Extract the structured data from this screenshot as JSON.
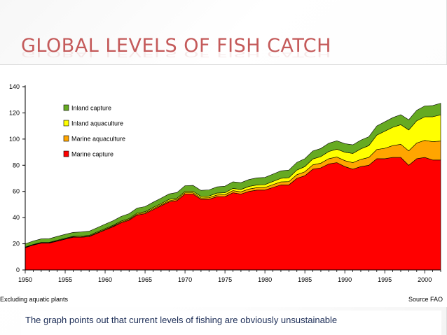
{
  "slide": {
    "title": "GLOBAL LEVELS OF FISH CATCH",
    "caption": "The graph points out that current levels of fishing are obviously unsustainable"
  },
  "chart_data": {
    "type": "area",
    "stacked": true,
    "title": "",
    "xlabel": "",
    "ylabel": "",
    "xlim": [
      1950,
      2002
    ],
    "ylim": [
      0,
      140
    ],
    "x_ticks": [
      1950,
      1955,
      1960,
      1965,
      1970,
      1975,
      1980,
      1985,
      1990,
      1995,
      2000
    ],
    "y_ticks": [
      0,
      20,
      40,
      60,
      80,
      100,
      120,
      140
    ],
    "grid": false,
    "legend_position": "top-left",
    "footnote_left": "Excluding aquatic plants",
    "footnote_right": "Source FAO",
    "x": [
      1950,
      1951,
      1952,
      1953,
      1954,
      1955,
      1956,
      1957,
      1958,
      1959,
      1960,
      1961,
      1962,
      1963,
      1964,
      1965,
      1966,
      1967,
      1968,
      1969,
      1970,
      1971,
      1972,
      1973,
      1974,
      1975,
      1976,
      1977,
      1978,
      1979,
      1980,
      1981,
      1982,
      1983,
      1984,
      1985,
      1986,
      1987,
      1988,
      1989,
      1990,
      1991,
      1992,
      1993,
      1994,
      1995,
      1996,
      1997,
      1998,
      1999,
      2000,
      2001,
      2002
    ],
    "series": [
      {
        "name": "Marine capture",
        "color": "#ff0000",
        "values": [
          17,
          19,
          20.5,
          20.5,
          22,
          23.5,
          25,
          25,
          25.5,
          28,
          30.5,
          33,
          36,
          38,
          42,
          43,
          46,
          49,
          52,
          53,
          58,
          58,
          54,
          54,
          56,
          56,
          59,
          58,
          60,
          61,
          61,
          63,
          65,
          65,
          70,
          72,
          77,
          78,
          81,
          82,
          79,
          77,
          79,
          80,
          85,
          85,
          86,
          86,
          80,
          85,
          86,
          84,
          84
        ]
      },
      {
        "name": "Marine aquaculture",
        "color": "#ffa500",
        "values": [
          0.2,
          0.2,
          0.2,
          0.3,
          0.3,
          0.3,
          0.3,
          0.4,
          0.4,
          0.4,
          0.5,
          0.5,
          0.6,
          0.6,
          0.7,
          0.7,
          0.8,
          0.8,
          0.9,
          0.9,
          1,
          1,
          1,
          1.2,
          1.3,
          1.5,
          1.6,
          1.7,
          1.8,
          1.9,
          2,
          2.2,
          2.3,
          2.5,
          2.8,
          3,
          3.3,
          3.6,
          4,
          4.3,
          4.5,
          5,
          5.5,
          6,
          7,
          8,
          9,
          10,
          11,
          12,
          13,
          14,
          14.5
        ]
      },
      {
        "name": "Inland aquaculture",
        "color": "#ffff00",
        "values": [
          0.3,
          0.3,
          0.3,
          0.3,
          0.4,
          0.4,
          0.4,
          0.5,
          0.5,
          0.6,
          0.6,
          0.6,
          0.7,
          0.7,
          0.8,
          0.8,
          0.9,
          0.9,
          1,
          1,
          1,
          1.1,
          1.2,
          1.3,
          1.4,
          1.5,
          1.7,
          1.8,
          2,
          2.1,
          2.2,
          2.4,
          2.7,
          3,
          3.5,
          4,
          4.5,
          5,
          5.5,
          6,
          6.5,
          7,
          8,
          9,
          11,
          13,
          14,
          15,
          16,
          17,
          18,
          19,
          20
        ]
      },
      {
        "name": "Inland capture",
        "color": "#66aa22",
        "values": [
          2.5,
          2.6,
          2.7,
          2.8,
          2.9,
          3,
          3,
          3.1,
          3.2,
          3.3,
          3.4,
          3.5,
          3.6,
          3.7,
          3.8,
          3.9,
          4,
          4.1,
          4.2,
          4.3,
          4.4,
          4.5,
          4.6,
          4.7,
          4.8,
          5,
          5.1,
          5.2,
          5.3,
          5.4,
          5.5,
          5.6,
          5.7,
          5.8,
          5.9,
          6,
          6.1,
          6.2,
          6.3,
          6.4,
          6.5,
          6.6,
          6.7,
          6.8,
          7,
          7.2,
          7.4,
          7.6,
          7.8,
          8,
          8.3,
          8.6,
          8.9
        ]
      }
    ]
  }
}
